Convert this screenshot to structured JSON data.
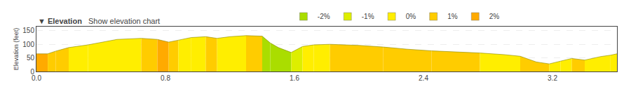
{
  "chart_data": {
    "type": "area",
    "title": "▼ Elevation",
    "subtitle": "Show elevation chart",
    "ylabel": "Elevation (feet)",
    "xlim": [
      0,
      3.6
    ],
    "ylim": [
      0,
      165
    ],
    "xticks": [
      {
        "value": 0,
        "label": "0.0"
      },
      0.8,
      1.6,
      2.4,
      3.2
    ],
    "yticks": [
      0,
      50,
      100,
      150
    ],
    "grid": true,
    "legend": "top",
    "color": "#888800",
    "series": [
      {
        "name": "-2%",
        "color": "#aadd00"
      },
      {
        "name": "-1%",
        "color": "#ddee00"
      },
      {
        "name": "0%",
        "color": "#ffee00"
      },
      {
        "name": "1%",
        "color": "#ffcc00"
      },
      {
        "name": "2%",
        "color": "#ffaa00"
      }
    ],
    "segments": [
      {
        "x": [
          0.0,
          0.07
        ],
        "values": [
          65,
          65
        ],
        "color": "#ffaa00"
      },
      {
        "x": [
          0.07,
          0.12
        ],
        "values": [
          65,
          75
        ],
        "color": "#ffcc00"
      },
      {
        "x": [
          0.12,
          0.2
        ],
        "values": [
          75,
          88
        ],
        "color": "#ffcc00"
      },
      {
        "x": [
          0.2,
          0.32
        ],
        "values": [
          88,
          98
        ],
        "color": "#ffee00"
      },
      {
        "x": [
          0.32,
          0.5
        ],
        "values": [
          98,
          118
        ],
        "color": "#ffee00"
      },
      {
        "x": [
          0.5,
          0.65
        ],
        "values": [
          118,
          122
        ],
        "color": "#ffee00"
      },
      {
        "x": [
          0.65,
          0.75
        ],
        "values": [
          122,
          118
        ],
        "color": "#ffcc00"
      },
      {
        "x": [
          0.75,
          0.82
        ],
        "values": [
          118,
          108
        ],
        "color": "#ffaa00"
      },
      {
        "x": [
          0.82,
          0.88
        ],
        "values": [
          108,
          115
        ],
        "color": "#ffcc00"
      },
      {
        "x": [
          0.88,
          0.96
        ],
        "values": [
          115,
          125
        ],
        "color": "#ffee00"
      },
      {
        "x": [
          0.96,
          1.05
        ],
        "values": [
          125,
          128
        ],
        "color": "#ffee00"
      },
      {
        "x": [
          1.05,
          1.12
        ],
        "values": [
          128,
          122
        ],
        "color": "#ffcc00"
      },
      {
        "x": [
          1.12,
          1.2
        ],
        "values": [
          122,
          128
        ],
        "color": "#ffee00"
      },
      {
        "x": [
          1.2,
          1.3
        ],
        "values": [
          128,
          132
        ],
        "color": "#ffee00"
      },
      {
        "x": [
          1.3,
          1.4
        ],
        "values": [
          132,
          130
        ],
        "color": "#ffcc00"
      },
      {
        "x": [
          1.4,
          1.45
        ],
        "values": [
          130,
          105
        ],
        "color": "#aadd00"
      },
      {
        "x": [
          1.45,
          1.5
        ],
        "values": [
          105,
          88
        ],
        "color": "#aadd00"
      },
      {
        "x": [
          1.5,
          1.58
        ],
        "values": [
          88,
          70
        ],
        "color": "#aadd00"
      },
      {
        "x": [
          1.58,
          1.65
        ],
        "values": [
          70,
          92
        ],
        "color": "#ddee00"
      },
      {
        "x": [
          1.65,
          1.72
        ],
        "values": [
          92,
          98
        ],
        "color": "#ffee00"
      },
      {
        "x": [
          1.72,
          1.82
        ],
        "values": [
          98,
          100
        ],
        "color": "#ffee00"
      },
      {
        "x": [
          1.82,
          2.0
        ],
        "values": [
          100,
          96
        ],
        "color": "#ffcc00"
      },
      {
        "x": [
          2.0,
          2.15
        ],
        "values": [
          96,
          90
        ],
        "color": "#ffcc00"
      },
      {
        "x": [
          2.15,
          2.3
        ],
        "values": [
          90,
          82
        ],
        "color": "#ffcc00"
      },
      {
        "x": [
          2.3,
          2.45
        ],
        "values": [
          82,
          76
        ],
        "color": "#ffcc00"
      },
      {
        "x": [
          2.45,
          2.6
        ],
        "values": [
          76,
          72
        ],
        "color": "#ffcc00"
      },
      {
        "x": [
          2.6,
          2.75
        ],
        "values": [
          72,
          68
        ],
        "color": "#ffcc00"
      },
      {
        "x": [
          2.75,
          2.9
        ],
        "values": [
          68,
          62
        ],
        "color": "#ffee00"
      },
      {
        "x": [
          2.9,
          3.0
        ],
        "values": [
          62,
          56
        ],
        "color": "#ffee00"
      },
      {
        "x": [
          3.0,
          3.1
        ],
        "values": [
          56,
          35
        ],
        "color": "#ffcc00"
      },
      {
        "x": [
          3.1,
          3.18
        ],
        "values": [
          35,
          28
        ],
        "color": "#ffcc00"
      },
      {
        "x": [
          3.18,
          3.25
        ],
        "values": [
          28,
          38
        ],
        "color": "#ffee00"
      },
      {
        "x": [
          3.25,
          3.32
        ],
        "values": [
          38,
          48
        ],
        "color": "#ffee00"
      },
      {
        "x": [
          3.32,
          3.4
        ],
        "values": [
          48,
          42
        ],
        "color": "#ffcc00"
      },
      {
        "x": [
          3.4,
          3.5
        ],
        "values": [
          42,
          55
        ],
        "color": "#ffee00"
      },
      {
        "x": [
          3.5,
          3.56
        ],
        "values": [
          55,
          60
        ],
        "color": "#ffee00"
      },
      {
        "x": [
          3.56,
          3.6
        ],
        "values": [
          60,
          65
        ],
        "color": "#ffee00"
      }
    ]
  }
}
